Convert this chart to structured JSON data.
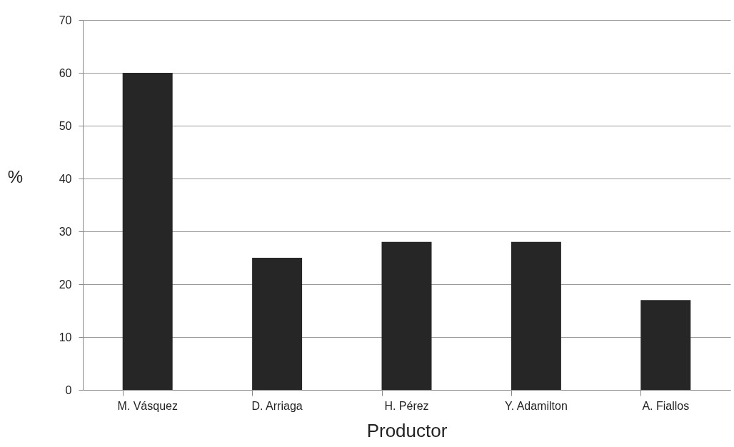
{
  "chart_data": {
    "type": "bar",
    "xlabel": "Productor",
    "ylabel": "%",
    "categories": [
      "M. Vásquez",
      "D. Arriaga",
      "H. Pérez",
      "Y. Adamilton",
      "A. Fiallos"
    ],
    "values": [
      60,
      25,
      28,
      28,
      17
    ],
    "color": "#262626",
    "ylim": [
      0,
      70
    ],
    "yticks": [
      0,
      10,
      20,
      30,
      40,
      50,
      60,
      70
    ],
    "grid": "y"
  }
}
